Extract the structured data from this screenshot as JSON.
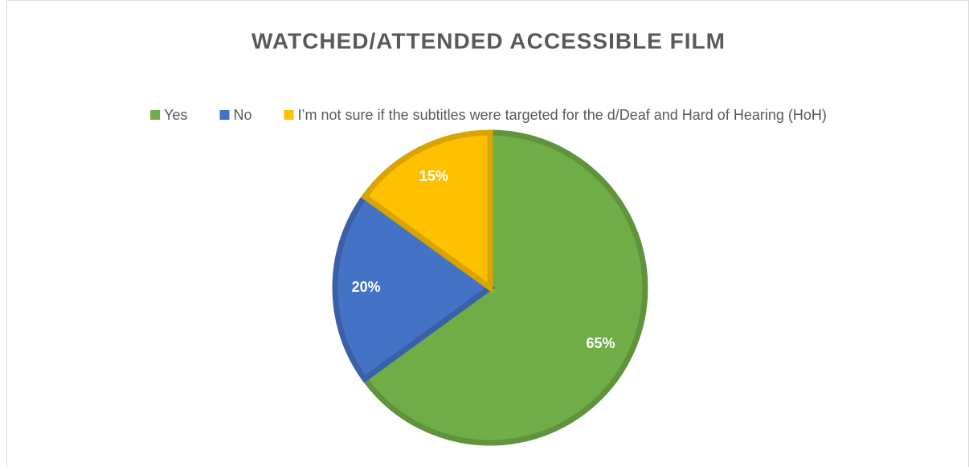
{
  "chart_data": {
    "type": "pie",
    "title": "WATCHED/ATTENDED ACCESSIBLE FILM",
    "categories": [
      "Yes",
      "No",
      "I’m not sure if the subtitles were targeted for the d/Deaf and Hard of Hearing (HoH)"
    ],
    "values": [
      65,
      20,
      15
    ],
    "value_labels": [
      "65%",
      "20%",
      "15%"
    ],
    "colors": [
      "#70ad47",
      "#4472c4",
      "#ffc000"
    ],
    "legend": "top"
  }
}
